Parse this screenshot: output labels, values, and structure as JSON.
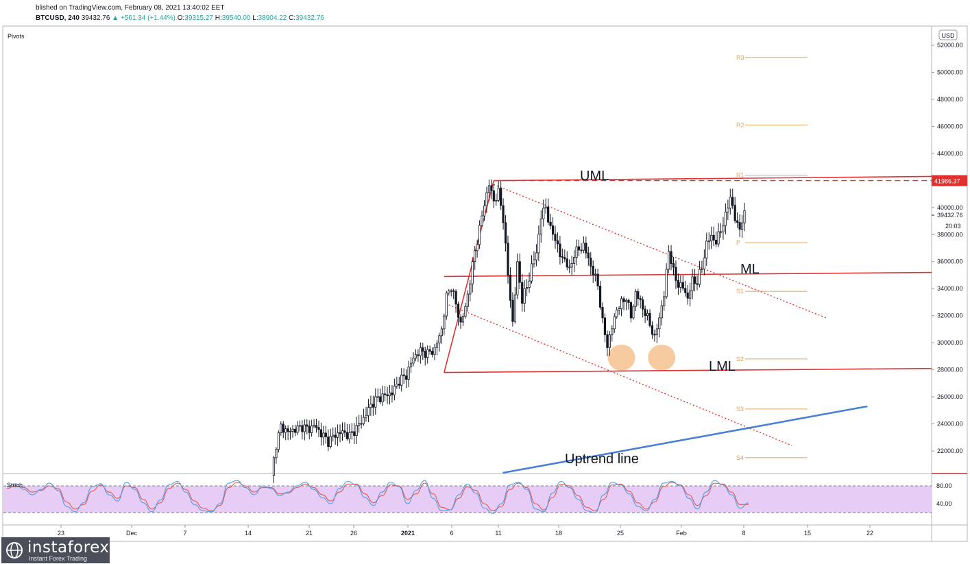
{
  "header": {
    "published": "blished on TradingView.com, February 08, 2021 13:40:02 EET",
    "symbol": "BTCUSD, 240",
    "last": "39432.76",
    "change": "+561.34 (+1.44%)",
    "o_label": "O:",
    "o": "39315.27",
    "h_label": "H:",
    "h": "39540.00",
    "l_label": "L:",
    "l": "38904.22",
    "c_label": "C:",
    "c": "39432.76"
  },
  "pane_labels": {
    "pivots": "Pivots",
    "stoch": "Stoch",
    "currency": "USD"
  },
  "logo": {
    "name": "instaforex",
    "tagline": "Instant Forex Trading"
  },
  "colors": {
    "candle": "#131722",
    "channel": "#e03030",
    "uptrend": "#4a7fd4",
    "pivot": "#e0a35c",
    "stoch_k": "#4e9de6",
    "stoch_d": "#e05a4f",
    "stoch_band": "#e7ccf6",
    "highlight": "#f5c28e"
  },
  "chart_data": [
    {
      "type": "candlestick",
      "title": "BTCUSD, 240",
      "ylim": [
        20000,
        53000
      ],
      "y_ticks": [
        22000,
        24000,
        26000,
        28000,
        30000,
        32000,
        34000,
        36000,
        38000,
        40000,
        42000,
        44000,
        46000,
        48000,
        50000,
        52000
      ],
      "y_tick_labels": [
        "22000.00",
        "24000.00",
        "26000.00",
        "28000.00",
        "30000.00",
        "32000.00",
        "34000.00",
        "36000.00",
        "38000.00",
        "40000.00",
        "42000.00",
        "44000.00",
        "46000.00",
        "48000.00",
        "50000.00",
        "52000.00"
      ],
      "x_tick_labels": [
        "23",
        "Dec",
        "7",
        "14",
        "21",
        "26",
        "2021",
        "6",
        "11",
        "18",
        "25",
        "Feb",
        "8",
        "15",
        "22"
      ],
      "price_labels": [
        {
          "value": 41986.37,
          "text": "41986.37"
        },
        {
          "value": 39432.76,
          "text": "39432.76"
        },
        {
          "text": "20:03"
        }
      ],
      "pivots": [
        {
          "name": "R3",
          "value": 51100
        },
        {
          "name": "R2",
          "value": 46100
        },
        {
          "name": "R1",
          "value": 42400
        },
        {
          "name": "P",
          "value": 37400
        },
        {
          "name": "S1",
          "value": 33800
        },
        {
          "name": "S2",
          "value": 28800
        },
        {
          "name": "S3",
          "value": 25100
        },
        {
          "name": "S4",
          "value": 21500
        }
      ],
      "annotations": [
        "UML",
        "ML",
        "LML",
        "Uptrend line"
      ],
      "price_path": [
        [
          0,
          20200
        ],
        [
          2,
          22500
        ],
        [
          4,
          23800
        ],
        [
          7,
          23400
        ],
        [
          10,
          23600
        ],
        [
          13,
          23800
        ],
        [
          16,
          23600
        ],
        [
          18,
          23900
        ],
        [
          21,
          23300
        ],
        [
          24,
          22700
        ],
        [
          27,
          23200
        ],
        [
          30,
          23400
        ],
        [
          33,
          23100
        ],
        [
          36,
          23700
        ],
        [
          39,
          24400
        ],
        [
          42,
          25400
        ],
        [
          45,
          25900
        ],
        [
          48,
          26100
        ],
        [
          51,
          26300
        ],
        [
          54,
          27200
        ],
        [
          57,
          27600
        ],
        [
          60,
          28900
        ],
        [
          63,
          29400
        ],
        [
          66,
          29200
        ],
        [
          69,
          29500
        ],
        [
          72,
          31000
        ],
        [
          74,
          33400
        ],
        [
          76,
          34200
        ],
        [
          78,
          32800
        ],
        [
          80,
          31400
        ],
        [
          82,
          32600
        ],
        [
          84,
          34600
        ],
        [
          86,
          36800
        ],
        [
          88,
          38400
        ],
        [
          90,
          40300
        ],
        [
          92,
          41700
        ],
        [
          94,
          40500
        ],
        [
          96,
          41100
        ],
        [
          98,
          39200
        ],
        [
          100,
          35000
        ],
        [
          102,
          31500
        ],
        [
          104,
          35800
        ],
        [
          106,
          33200
        ],
        [
          108,
          34100
        ],
        [
          110,
          35600
        ],
        [
          112,
          36700
        ],
        [
          114,
          39300
        ],
        [
          116,
          40100
        ],
        [
          118,
          38300
        ],
        [
          120,
          37800
        ],
        [
          122,
          36400
        ],
        [
          124,
          36200
        ],
        [
          126,
          35300
        ],
        [
          128,
          36600
        ],
        [
          130,
          36900
        ],
        [
          132,
          37200
        ],
        [
          134,
          36200
        ],
        [
          136,
          35200
        ],
        [
          138,
          34300
        ],
        [
          140,
          31500
        ],
        [
          142,
          29800
        ],
        [
          144,
          31100
        ],
        [
          146,
          32500
        ],
        [
          148,
          32900
        ],
        [
          150,
          33400
        ],
        [
          152,
          31900
        ],
        [
          154,
          33700
        ],
        [
          156,
          33000
        ],
        [
          158,
          32200
        ],
        [
          160,
          31400
        ],
        [
          162,
          30300
        ],
        [
          164,
          31900
        ],
        [
          166,
          33500
        ],
        [
          168,
          36900
        ],
        [
          170,
          35200
        ],
        [
          172,
          34300
        ],
        [
          174,
          34100
        ],
        [
          176,
          33300
        ],
        [
          178,
          34600
        ],
        [
          180,
          34500
        ],
        [
          182,
          35600
        ],
        [
          184,
          37300
        ],
        [
          186,
          37900
        ],
        [
          188,
          37400
        ],
        [
          190,
          38400
        ],
        [
          192,
          39300
        ],
        [
          194,
          40900
        ],
        [
          196,
          39100
        ],
        [
          198,
          38500
        ],
        [
          200,
          39432.76
        ]
      ],
      "channel_lines": [
        {
          "name": "UML",
          "from": [
            94,
            41986
          ],
          "to": [
            296,
            42300
          ]
        },
        {
          "name": "ML",
          "from": [
            73,
            34900
          ],
          "to": [
            296,
            35200
          ]
        },
        {
          "name": "LML",
          "from": [
            73,
            27800
          ],
          "to": [
            296,
            28100
          ]
        },
        {
          "name": "Pitchfork-left",
          "from": [
            73,
            27800
          ],
          "to": [
            94,
            41986
          ]
        }
      ],
      "dotted_lines": [
        {
          "from": [
            94,
            41700
          ],
          "to": [
            235,
            31800
          ]
        },
        {
          "from": [
            75,
            32800
          ],
          "to": [
            220,
            22400
          ]
        }
      ],
      "uptrend_line": {
        "from": [
          -30,
          16300
        ],
        "to": [
          252,
          25300
        ]
      },
      "highlight_points": [
        [
          148,
          28900
        ],
        [
          165,
          28900
        ]
      ]
    },
    {
      "type": "line",
      "title": "Stoch",
      "ylim": [
        0,
        100
      ],
      "y_tick_labels": [
        "80.00",
        "40.00"
      ],
      "band": [
        20,
        80
      ],
      "k_values": [
        78,
        85,
        72,
        60,
        72,
        86,
        70,
        34,
        22,
        42,
        78,
        85,
        60,
        46,
        88,
        72,
        42,
        22,
        48,
        82,
        90,
        66,
        38,
        24,
        22,
        40,
        86,
        92,
        76,
        60,
        80,
        74,
        58,
        66,
        80,
        88,
        72,
        54,
        40,
        74,
        90,
        82,
        54,
        36,
        66,
        88,
        78,
        40,
        70,
        92,
        52,
        24,
        26,
        60,
        84,
        64,
        30,
        18,
        40,
        82,
        88,
        72,
        28,
        22,
        64,
        90,
        76,
        50,
        24,
        20,
        60,
        88,
        82,
        62,
        34,
        24,
        50,
        86,
        90,
        80,
        52,
        28,
        66,
        92,
        82,
        60,
        30,
        42
      ],
      "d_values": [
        74,
        80,
        76,
        66,
        70,
        80,
        74,
        44,
        28,
        38,
        68,
        82,
        66,
        52,
        80,
        76,
        50,
        28,
        42,
        74,
        86,
        72,
        46,
        30,
        24,
        36,
        76,
        88,
        80,
        66,
        76,
        76,
        62,
        64,
        76,
        84,
        76,
        60,
        46,
        66,
        84,
        84,
        62,
        42,
        58,
        82,
        80,
        50,
        62,
        86,
        62,
        32,
        26,
        52,
        78,
        70,
        40,
        24,
        34,
        72,
        86,
        76,
        40,
        26,
        54,
        84,
        80,
        58,
        32,
        24,
        50,
        82,
        84,
        68,
        42,
        28,
        44,
        78,
        88,
        82,
        60,
        36,
        58,
        86,
        84,
        66,
        38,
        38
      ]
    }
  ]
}
